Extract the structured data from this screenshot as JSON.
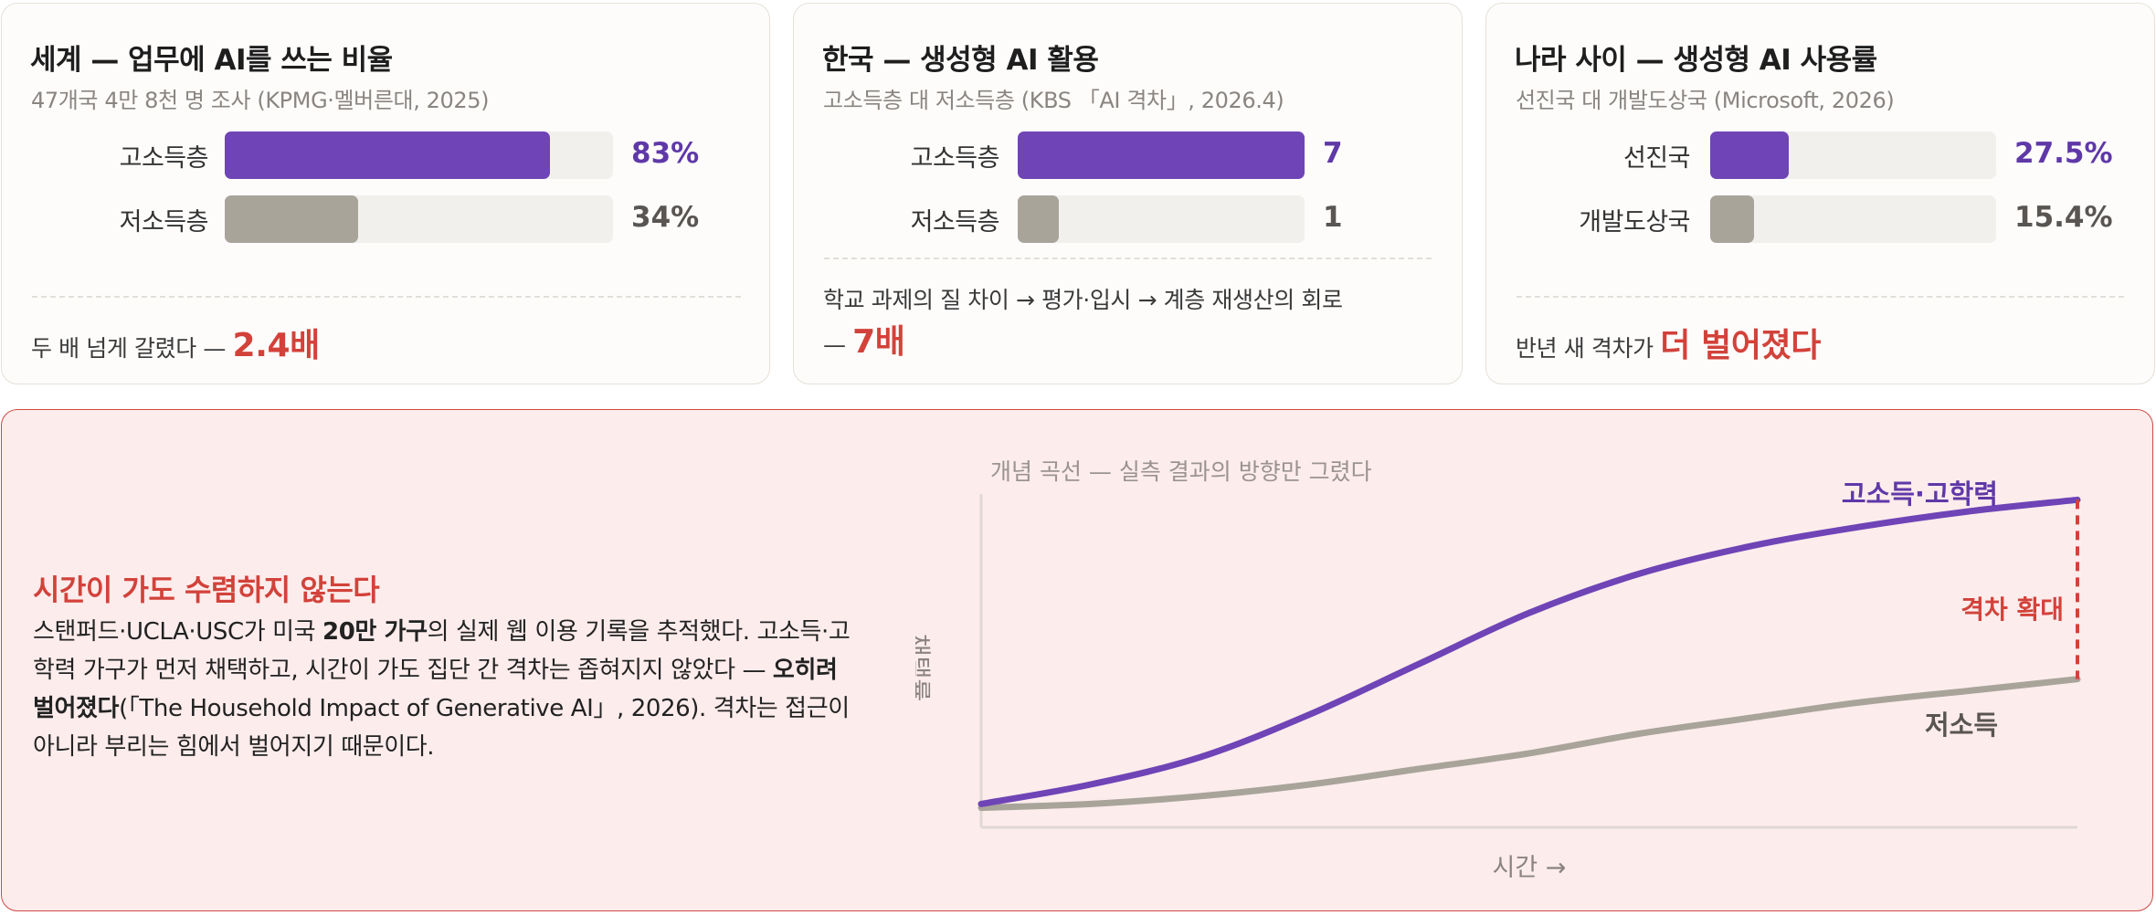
{
  "cards": [
    {
      "title": "세계 — 업무에 AI를 쓰는 비율",
      "subtitle": "47개국 4만 8천 명 조사 (KPMG·멜버른대, 2025)",
      "rows": [
        {
          "label": "고소득층",
          "value": 83,
          "display": "83%"
        },
        {
          "label": "저소득층",
          "value": 34,
          "display": "34%"
        }
      ],
      "footer_text": "두 배 넘게 갈렸다 — ",
      "footer_emphasis": "2.4배"
    },
    {
      "title": "한국 — 생성형 AI 활용",
      "subtitle": "고소득층 대 저소득층 (KBS 「AI 격차」, 2026.4)",
      "rows": [
        {
          "label": "고소득층",
          "value": 7,
          "display": "7"
        },
        {
          "label": "저소득층",
          "value": 1,
          "display": "1"
        }
      ],
      "footer_text": "학교 과제의 질 차이 → 평가·입시 → 계층 재생산의 회로",
      "footer_prefix": "— ",
      "footer_emphasis": "7배"
    },
    {
      "title": "나라 사이 — 생성형 AI 사용률",
      "subtitle": "선진국 대 개발도상국 (Microsoft, 2026)",
      "rows": [
        {
          "label": "선진국",
          "value": 27.5,
          "display": "27.5%"
        },
        {
          "label": "개발도상국",
          "value": 15.4,
          "display": "15.4%"
        }
      ],
      "footer_text": "반년 새 격차가 ",
      "footer_emphasis": "더 벌어졌다"
    }
  ],
  "bottom": {
    "heading": "시간이 가도 수렴하지 않는다",
    "body": [
      {
        "t": "스탠퍼드·UCLA·USC가 미국 "
      },
      {
        "t": "20만 가구",
        "b": true
      },
      {
        "t": "의 실제 웹 이용 기록을 추적했다. 고소득·고학력 가구가 먼저 채택하고, 시간이 가도 집단 간 격차는 좁혀지지 않았다 — "
      },
      {
        "t": "오히려 벌어졌다",
        "b": true
      },
      {
        "t": "(「The Household Impact of Generative AI」, 2026). 격차는 접근이 아니라 부리는 힘에서 벌어지기 때문이다."
      }
    ]
  },
  "chart_data": {
    "type": "line",
    "caption": "개념 곡선 — 실측 결과의 방향만 그렸다",
    "xlabel": "시간 →",
    "ylabel": "채택률",
    "gap_annotation": "격차 확대",
    "x": [
      0,
      0.1,
      0.2,
      0.3,
      0.4,
      0.5,
      0.6,
      0.7,
      0.8,
      0.9,
      1.0
    ],
    "series": [
      {
        "name": "고소득·고학력",
        "color": "#6f44b6",
        "values": [
          0.06,
          0.11,
          0.18,
          0.29,
          0.42,
          0.55,
          0.65,
          0.72,
          0.77,
          0.81,
          0.84
        ]
      },
      {
        "name": "저소득",
        "color": "#a8a49a",
        "values": [
          0.05,
          0.06,
          0.08,
          0.11,
          0.15,
          0.19,
          0.24,
          0.28,
          0.32,
          0.35,
          0.38
        ]
      }
    ],
    "xlim": [
      0,
      1
    ],
    "ylim": [
      0,
      1
    ],
    "grid": false,
    "colors": {
      "gap": "#d2423a",
      "axis": "#e0d8d4",
      "caption": "#9a9391",
      "xlabel": "#8a8380"
    }
  }
}
